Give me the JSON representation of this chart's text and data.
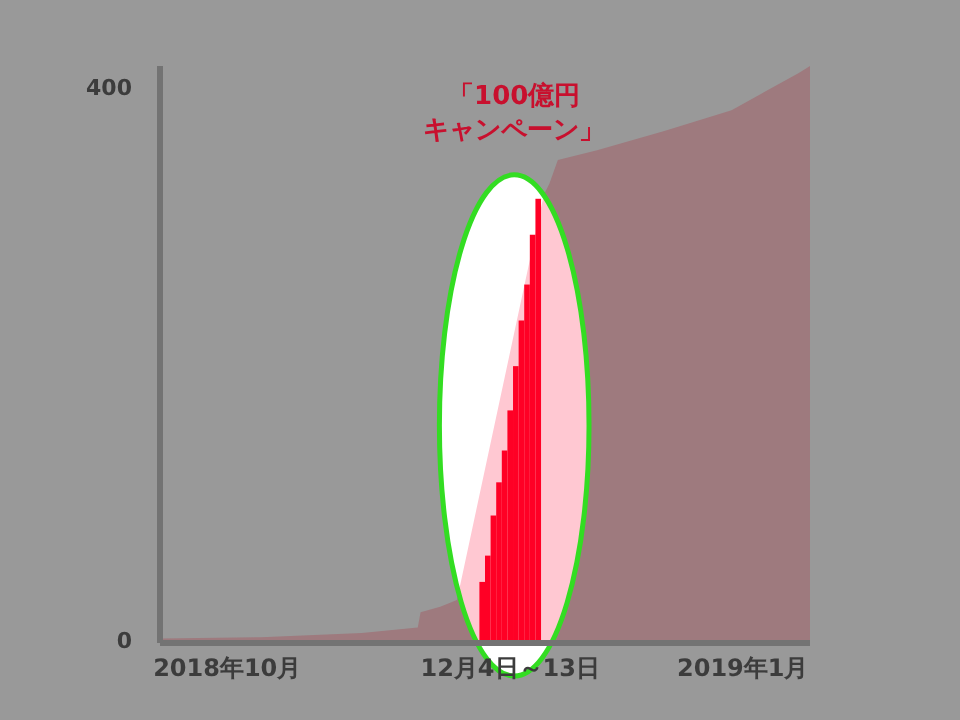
{
  "chart_data": {
    "type": "area",
    "xlim": [
      "2018-10-08",
      "2019-02-01"
    ],
    "ylim": [
      0,
      415
    ],
    "xticks": [
      {
        "value": "2018-10-20",
        "label": "2018年10月"
      },
      {
        "value": "2018-12-09T12:00",
        "label": "12月4日～13日"
      },
      {
        "value": "2019-01-20",
        "label": "2019年1月"
      }
    ],
    "yticks": [
      0,
      400
    ],
    "series": [
      {
        "color": "#9e7a7e",
        "x": [
          "2018-10-08",
          "2018-10-26",
          "2018-11-13",
          "2018-11-23",
          "2018-11-23T12:00",
          "2018-11-27",
          "2018-11-30",
          "2018-12-15T12:00",
          "2018-12-16T12:00",
          "2018-12-18",
          "2018-12-25",
          "2019-01-06",
          "2019-01-18",
          "2019-01-30",
          "2019-02-01"
        ],
        "values": [
          1,
          2,
          5,
          9,
          20,
          24,
          29,
          322,
          330,
          347,
          354,
          368,
          383,
          410,
          415
        ]
      },
      {
        "type": "bar",
        "color": "#ff0025",
        "x": [
          "2018-12-04",
          "2018-12-05",
          "2018-12-06",
          "2018-12-07",
          "2018-12-08",
          "2018-12-09",
          "2018-12-10",
          "2018-12-11",
          "2018-12-12",
          "2018-12-13",
          "2018-12-14"
        ],
        "values": [
          42,
          61,
          90,
          114,
          137,
          166,
          198,
          231,
          257,
          293,
          319
        ]
      }
    ],
    "annotations": [
      "「100億円キャンペーン」"
    ]
  }
}
